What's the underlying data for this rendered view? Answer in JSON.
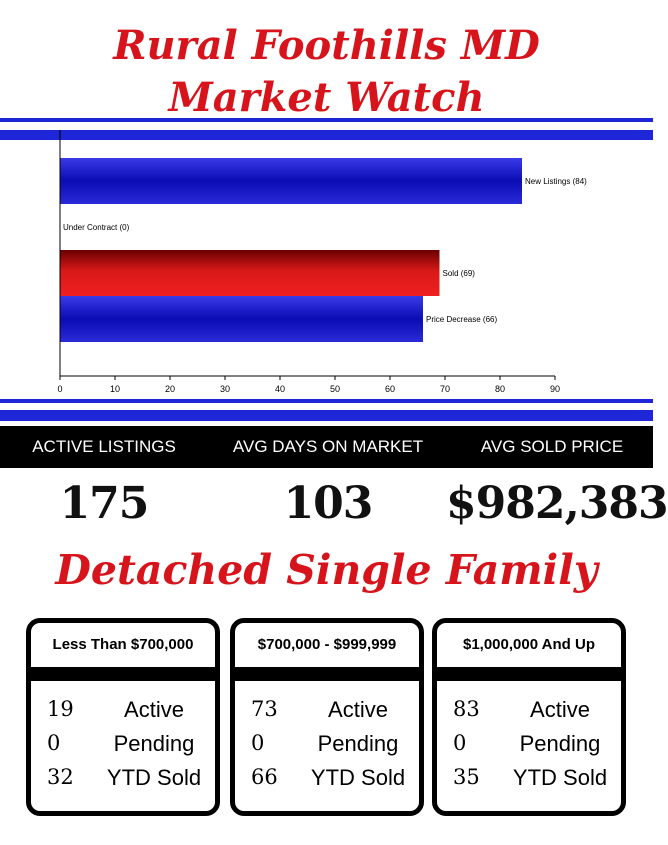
{
  "header": {
    "title_line1": "Rural Foothills MD",
    "title_line2": "Market Watch"
  },
  "colors": {
    "title_red": "#d7141c",
    "stripe_blue": "#1f26d8",
    "bar_blue": "#1010c8",
    "bar_red": "#d01010"
  },
  "chart_data": {
    "type": "bar",
    "orientation": "horizontal",
    "categories": [
      "New Listings (84)",
      "Under Contract (0)",
      "Sold (69)",
      "Price Decrease (66)"
    ],
    "values": [
      84,
      0,
      69,
      66
    ],
    "bar_colors": [
      "blue",
      "blue",
      "red",
      "blue"
    ],
    "xlim": [
      0,
      90
    ],
    "xticks": [
      "0",
      "10",
      "20",
      "30",
      "40",
      "50",
      "60",
      "70",
      "80",
      "90"
    ],
    "title": "",
    "xlabel": "",
    "ylabel": ""
  },
  "stats": {
    "active_label": "ACTIVE LISTINGS",
    "active_value": "175",
    "dom_label": "AVG DAYS ON MARKET",
    "dom_value": "103",
    "price_label": "AVG SOLD PRICE",
    "price_value": "$982,383"
  },
  "section_title": "Detached Single Family",
  "cards": [
    {
      "title": "Less Than $700,000",
      "rows": [
        {
          "num": "19",
          "label": "Active"
        },
        {
          "num": "0",
          "label": "Pending"
        },
        {
          "num": "32",
          "label": "YTD Sold"
        }
      ]
    },
    {
      "title": "$700,000 - $999,999",
      "rows": [
        {
          "num": "73",
          "label": "Active"
        },
        {
          "num": "0",
          "label": "Pending"
        },
        {
          "num": "66",
          "label": "YTD Sold"
        }
      ]
    },
    {
      "title": "$1,000,000 And Up",
      "rows": [
        {
          "num": "83",
          "label": "Active"
        },
        {
          "num": "0",
          "label": "Pending"
        },
        {
          "num": "35",
          "label": "YTD Sold"
        }
      ]
    }
  ]
}
